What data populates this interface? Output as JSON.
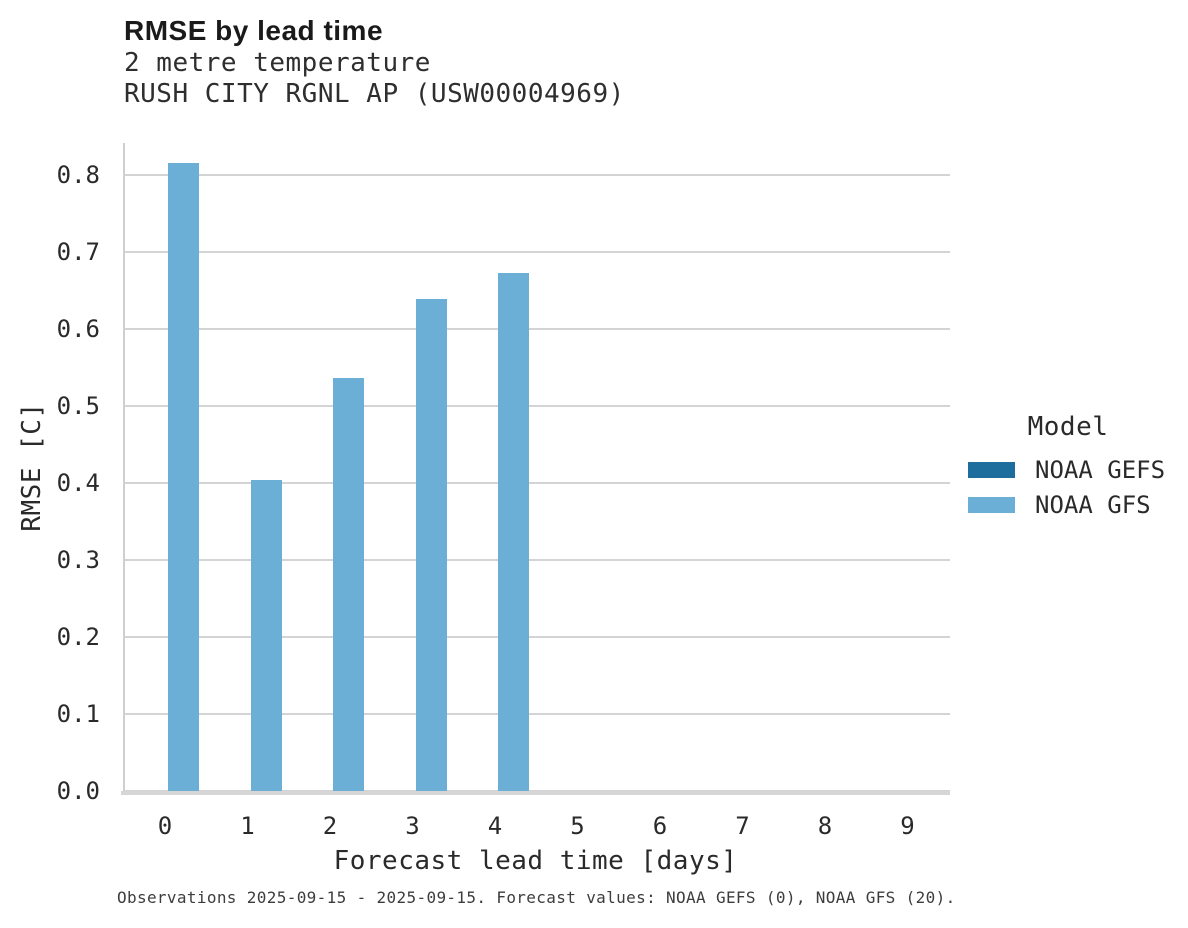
{
  "header": {
    "title": "RMSE by lead time",
    "subtitle_line1": "2 metre temperature",
    "subtitle_line2": "RUSH CITY RGNL AP (USW00004969)"
  },
  "chart_data": {
    "type": "bar",
    "title": "RMSE by lead time",
    "subtitle": [
      "2 metre temperature",
      "RUSH CITY RGNL AP (USW00004969)"
    ],
    "xlabel": "Forecast lead time [days]",
    "ylabel": "RMSE [C]",
    "categories": [
      0,
      1,
      2,
      3,
      4,
      5,
      6,
      7,
      8,
      9
    ],
    "series": [
      {
        "name": "NOAA GEFS",
        "color": "#1d6e9c",
        "values": [
          null,
          null,
          null,
          null,
          null,
          null,
          null,
          null,
          null,
          null
        ]
      },
      {
        "name": "NOAA GFS",
        "color": "#6bafd6",
        "values": [
          0.815,
          0.403,
          0.536,
          0.639,
          0.672,
          null,
          null,
          null,
          null,
          null
        ]
      }
    ],
    "ylim": [
      0,
      0.841
    ],
    "yticks": [
      "0.0",
      "0.1",
      "0.2",
      "0.3",
      "0.4",
      "0.5",
      "0.6",
      "0.7",
      "0.8"
    ],
    "xticks": [
      "0",
      "1",
      "2",
      "3",
      "4",
      "5",
      "6",
      "7",
      "8",
      "9"
    ],
    "grid": "horizontal",
    "legend_position": "right",
    "legend_title": "Model"
  },
  "legend": {
    "title": "Model",
    "entries": [
      {
        "label": "NOAA GEFS",
        "color": "#1d6e9c"
      },
      {
        "label": "NOAA GFS",
        "color": "#6bafd6"
      }
    ]
  },
  "caption": {
    "text": "Observations 2025-09-15 - 2025-09-15. Forecast values: NOAA GEFS (0), NOAA GFS (20)."
  },
  "colors": {
    "bar_gfs": "#6bafd6",
    "bar_gefs": "#1d6e9c",
    "gridline": "#d4d4d4",
    "axis_spine": "#cfcfcf",
    "text": "#2a2a2a"
  }
}
